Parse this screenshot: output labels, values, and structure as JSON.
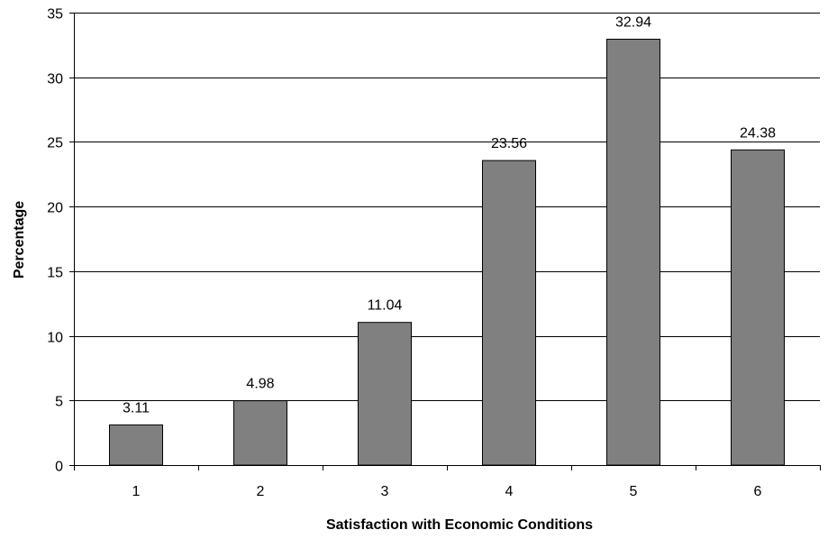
{
  "chart_data": {
    "type": "bar",
    "title": "",
    "xlabel": "Satisfaction with Economic Conditions",
    "ylabel": "Percentage",
    "categories": [
      "1",
      "2",
      "3",
      "4",
      "5",
      "6"
    ],
    "values": [
      3.11,
      4.98,
      11.04,
      23.56,
      32.94,
      24.38
    ],
    "data_labels": [
      "3.11",
      "4.98",
      "11.04",
      "23.56",
      "32.94",
      "24.38"
    ],
    "ylim": [
      0,
      35
    ],
    "yticks": [
      0,
      5,
      10,
      15,
      20,
      25,
      30,
      35
    ],
    "ytick_labels": [
      "0",
      "5",
      "10",
      "15",
      "20",
      "25",
      "30",
      "35"
    ],
    "grid": true,
    "legend": "none",
    "colors": {
      "bar_fill": "#808080",
      "bar_stroke": "#000000",
      "grid": "#000000",
      "background": "#ffffff"
    }
  }
}
